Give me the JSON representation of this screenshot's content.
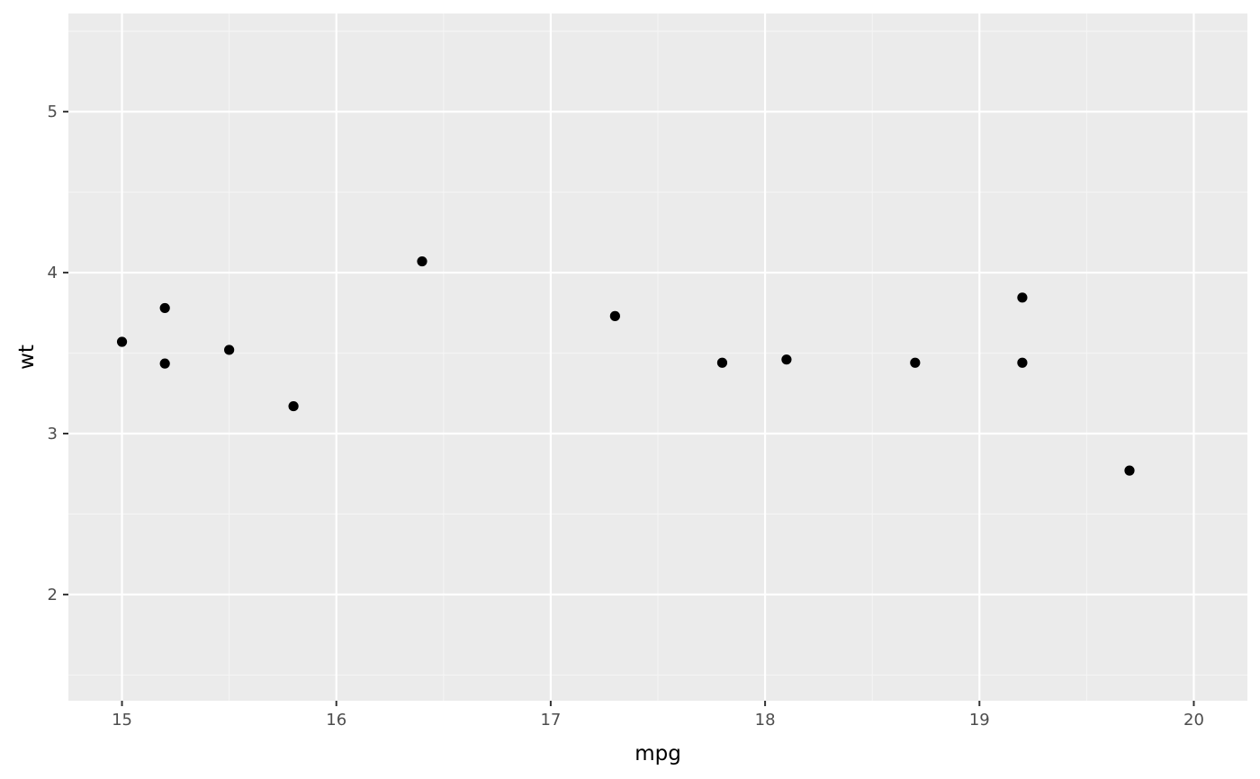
{
  "chart_data": {
    "type": "scatter",
    "title": "",
    "xlabel": "mpg",
    "ylabel": "wt",
    "xlim": [
      14.75,
      20.25
    ],
    "ylim": [
      1.34,
      5.61
    ],
    "x_ticks": [
      15,
      16,
      17,
      18,
      19,
      20
    ],
    "y_ticks": [
      2,
      3,
      4,
      5
    ],
    "grid": true,
    "legend": "none",
    "colors": {
      "panel_background": "#ebebeb",
      "grid_major": "#ffffff",
      "grid_minor": "#f5f5f5",
      "point": "#000000",
      "tick_label": "#4d4d4d",
      "tick_mark": "#333333"
    },
    "points": [
      {
        "x": 15.0,
        "y": 3.57
      },
      {
        "x": 15.2,
        "y": 3.78
      },
      {
        "x": 15.2,
        "y": 3.435
      },
      {
        "x": 15.5,
        "y": 3.52
      },
      {
        "x": 15.8,
        "y": 3.17
      },
      {
        "x": 16.4,
        "y": 4.07
      },
      {
        "x": 17.3,
        "y": 3.73
      },
      {
        "x": 17.8,
        "y": 3.44
      },
      {
        "x": 18.1,
        "y": 3.46
      },
      {
        "x": 18.7,
        "y": 3.44
      },
      {
        "x": 19.2,
        "y": 3.845
      },
      {
        "x": 19.2,
        "y": 3.44
      },
      {
        "x": 19.7,
        "y": 2.77
      }
    ]
  }
}
